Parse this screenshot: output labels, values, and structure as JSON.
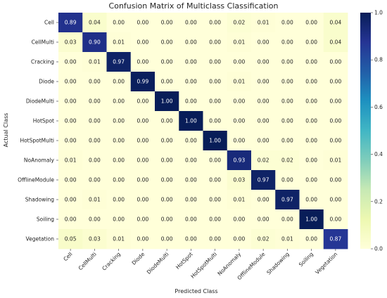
{
  "chart_data": {
    "type": "heatmap",
    "title": "Confusion Matrix of Multiclass Classification",
    "xlabel": "Predicted Class",
    "ylabel": "Actual Class",
    "categories": [
      "Cell",
      "CellMulti",
      "Cracking",
      "Diode",
      "DiodeMulti",
      "HotSpot",
      "HotSpotMulti",
      "NoAnomaly",
      "OfflineModule",
      "Shadowing",
      "Soiling",
      "Vegetation"
    ],
    "values": [
      [
        0.89,
        0.04,
        0.0,
        0.0,
        0.0,
        0.0,
        0.0,
        0.02,
        0.01,
        0.0,
        0.0,
        0.04
      ],
      [
        0.03,
        0.9,
        0.01,
        0.0,
        0.0,
        0.0,
        0.0,
        0.01,
        0.0,
        0.0,
        0.0,
        0.04
      ],
      [
        0.0,
        0.01,
        0.97,
        0.0,
        0.0,
        0.0,
        0.0,
        0.0,
        0.0,
        0.0,
        0.0,
        0.0
      ],
      [
        0.0,
        0.0,
        0.0,
        0.99,
        0.0,
        0.0,
        0.0,
        0.01,
        0.0,
        0.0,
        0.0,
        0.0
      ],
      [
        0.0,
        0.0,
        0.0,
        0.0,
        1.0,
        0.0,
        0.0,
        0.0,
        0.0,
        0.0,
        0.0,
        0.0
      ],
      [
        0.0,
        0.0,
        0.0,
        0.0,
        0.0,
        1.0,
        0.0,
        0.0,
        0.0,
        0.0,
        0.0,
        0.0
      ],
      [
        0.0,
        0.0,
        0.0,
        0.0,
        0.0,
        0.0,
        1.0,
        0.0,
        0.0,
        0.0,
        0.0,
        0.0
      ],
      [
        0.01,
        0.0,
        0.0,
        0.0,
        0.0,
        0.0,
        0.0,
        0.93,
        0.02,
        0.02,
        0.0,
        0.01
      ],
      [
        0.0,
        0.0,
        0.0,
        0.0,
        0.0,
        0.0,
        0.0,
        0.03,
        0.97,
        0.0,
        0.0,
        0.0
      ],
      [
        0.0,
        0.01,
        0.0,
        0.0,
        0.0,
        0.0,
        0.0,
        0.01,
        0.0,
        0.97,
        0.0,
        0.0
      ],
      [
        0.0,
        0.0,
        0.0,
        0.0,
        0.0,
        0.0,
        0.0,
        0.0,
        0.0,
        0.0,
        1.0,
        0.0
      ],
      [
        0.05,
        0.03,
        0.01,
        0.0,
        0.0,
        0.0,
        0.0,
        0.0,
        0.02,
        0.01,
        0.0,
        0.87
      ]
    ],
    "colorbar": {
      "range": [
        0.0,
        1.0
      ],
      "ticks": [
        "0.0",
        "0.2",
        "0.4",
        "0.6",
        "0.8",
        "1.0"
      ],
      "colormap": "YlGnBu"
    },
    "colors": {
      "low": "#ffffd9",
      "high": "#081d58"
    }
  }
}
